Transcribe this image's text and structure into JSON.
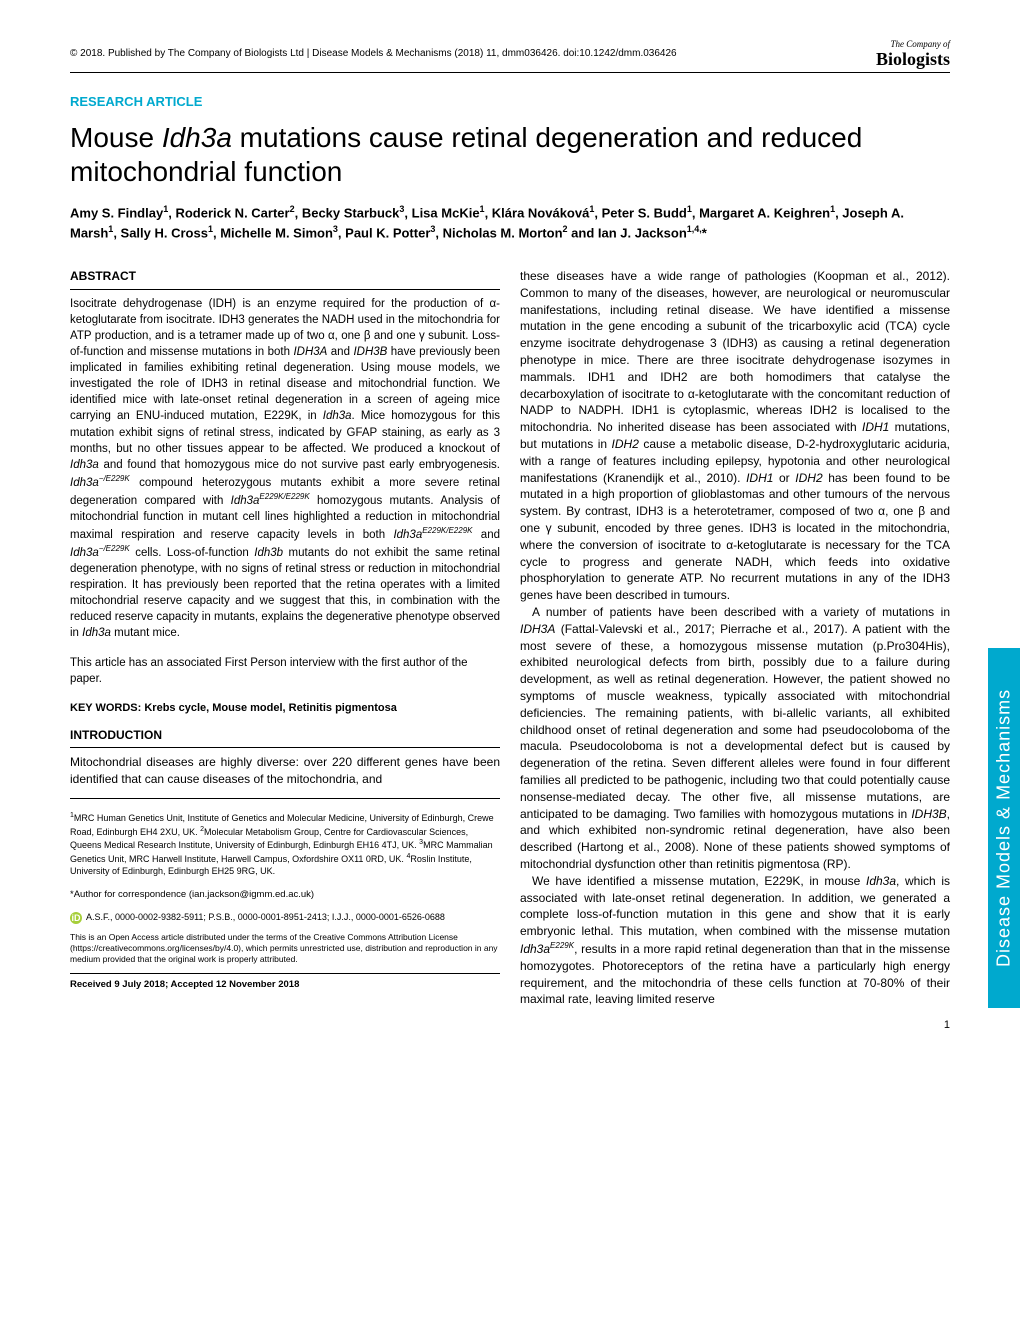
{
  "header": {
    "copyright": "© 2018. Published by The Company of Biologists Ltd | Disease Models & Mechanisms (2018) 11, dmm036426. doi:10.1242/dmm.036426",
    "logo_small": "The Company of",
    "logo_big": "Biologists"
  },
  "article_type": "RESEARCH ARTICLE",
  "title_pre": "Mouse ",
  "title_gene": "Idh3a",
  "title_post": " mutations cause retinal degeneration and reduced mitochondrial function",
  "authors_html": "Amy S. Findlay<sup>1</sup>, Roderick N. Carter<sup>2</sup>, Becky Starbuck<sup>3</sup>, Lisa McKie<sup>1</sup>, Klára Nováková<sup>1</sup>, Peter S. Budd<sup>1</sup>, Margaret A. Keighren<sup>1</sup>, Joseph A. Marsh<sup>1</sup>, Sally H. Cross<sup>1</sup>, Michelle M. Simon<sup>3</sup>, Paul K. Potter<sup>3</sup>, Nicholas M. Morton<sup>2</sup> and Ian J. Jackson<sup>1,4,</sup>*",
  "abstract_heading": "ABSTRACT",
  "abstract": "Isocitrate dehydrogenase (IDH) is an enzyme required for the production of α-ketoglutarate from isocitrate. IDH3 generates the NADH used in the mitochondria for ATP production, and is a tetramer made up of two α, one β and one γ subunit. Loss-of-function and missense mutations in both <i>IDH3A</i> and <i>IDH3B</i> have previously been implicated in families exhibiting retinal degeneration. Using mouse models, we investigated the role of IDH3 in retinal disease and mitochondrial function. We identified mice with late-onset retinal degeneration in a screen of ageing mice carrying an ENU-induced mutation, E229K, in <i>Idh3a</i>. Mice homozygous for this mutation exhibit signs of retinal stress, indicated by GFAP staining, as early as 3 months, but no other tissues appear to be affected. We produced a knockout of <i>Idh3a</i> and found that homozygous mice do not survive past early embryogenesis. <i>Idh3a<sup>−/E229K</sup></i> compound heterozygous mutants exhibit a more severe retinal degeneration compared with <i>Idh3a<sup>E229K/E229K</sup></i> homozygous mutants. Analysis of mitochondrial function in mutant cell lines highlighted a reduction in mitochondrial maximal respiration and reserve capacity levels in both <i>Idh3a<sup>E229K/E229K</sup></i> and <i>Idh3a<sup>−/E229K</sup></i> cells. Loss-of-function <i>Idh3b</i> mutants do not exhibit the same retinal degeneration phenotype, with no signs of retinal stress or reduction in mitochondrial respiration. It has previously been reported that the retina operates with a limited mitochondrial reserve capacity and we suggest that this, in combination with the reduced reserve capacity in mutants, explains the degenerative phenotype observed in <i>Idh3a</i> mutant mice.",
  "first_person": "This article has an associated First Person interview with the first author of the paper.",
  "keywords_label": "KEY WORDS: Krebs cycle, Mouse model, Retinitis pigmentosa",
  "intro_heading": "INTRODUCTION",
  "intro_p1": "Mitochondrial diseases are highly diverse: over 220 different genes have been identified that can cause diseases of the mitochondria, and",
  "intro_col2_p1": "these diseases have a wide range of pathologies (Koopman et al., 2012). Common to many of the diseases, however, are neurological or neuromuscular manifestations, including retinal disease. We have identified a missense mutation in the gene encoding a subunit of the tricarboxylic acid (TCA) cycle enzyme isocitrate dehydrogenase 3 (IDH3) as causing a retinal degeneration phenotype in mice. There are three isocitrate dehydrogenase isozymes in mammals. IDH1 and IDH2 are both homodimers that catalyse the decarboxylation of isocitrate to α-ketoglutarate with the concomitant reduction of NADP to NADPH. IDH1 is cytoplasmic, whereas IDH2 is localised to the mitochondria. No inherited disease has been associated with <i>IDH1</i> mutations, but mutations in <i>IDH2</i> cause a metabolic disease, D-2-hydroxyglutaric aciduria, with a range of features including epilepsy, hypotonia and other neurological manifestations (Kranendijk et al., 2010). <i>IDH1</i> or <i>IDH2</i> has been found to be mutated in a high proportion of glioblastomas and other tumours of the nervous system. By contrast, IDH3 is a heterotetramer, composed of two α, one β and one γ subunit, encoded by three genes. IDH3 is located in the mitochondria, where the conversion of isocitrate to α-ketoglutarate is necessary for the TCA cycle to progress and generate NADH, which feeds into oxidative phosphorylation to generate ATP. No recurrent mutations in any of the IDH3 genes have been described in tumours.",
  "intro_col2_p2": "A number of patients have been described with a variety of mutations in <i>IDH3A</i> (Fattal-Valevski et al., 2017; Pierrache et al., 2017). A patient with the most severe of these, a homozygous missense mutation (p.Pro304His), exhibited neurological defects from birth, possibly due to a failure during development, as well as retinal degeneration. However, the patient showed no symptoms of muscle weakness, typically associated with mitochondrial deficiencies. The remaining patients, with bi-allelic variants, all exhibited childhood onset of retinal degeneration and some had pseudocoloboma of the macula. Pseudocoloboma is not a developmental defect but is caused by degeneration of the retina. Seven different alleles were found in four different families all predicted to be pathogenic, including two that could potentially cause nonsense-mediated decay. The other five, all missense mutations, are anticipated to be damaging. Two families with homozygous mutations in <i>IDH3B</i>, and which exhibited non-syndromic retinal degeneration, have also been described (Hartong et al., 2008). None of these patients showed symptoms of mitochondrial dysfunction other than retinitis pigmentosa (RP).",
  "intro_col2_p3": "We have identified a missense mutation, E229K, in mouse <i>Idh3a</i>, which is associated with late-onset retinal degeneration. In addition, we generated a complete loss-of-function mutation in this gene and show that it is early embryonic lethal. This mutation, when combined with the missense mutation <i>Idh3a<sup>E229K</sup></i>, results in a more rapid retinal degeneration than that in the missense homozygotes. Photoreceptors of the retina have a particularly high energy requirement, and the mitochondria of these cells function at 70-80% of their maximal rate, leaving limited reserve",
  "affiliations": "<sup>1</sup>MRC Human Genetics Unit, Institute of Genetics and Molecular Medicine, University of Edinburgh, Crewe Road, Edinburgh EH4 2XU, UK. <sup>2</sup>Molecular Metabolism Group, Centre for Cardiovascular Sciences, Queens Medical Research Institute, University of Edinburgh, Edinburgh EH16 4TJ, UK. <sup>3</sup>MRC Mammalian Genetics Unit, MRC Harwell Institute, Harwell Campus, Oxfordshire OX11 0RD, UK. <sup>4</sup>Roslin Institute, University of Edinburgh, Edinburgh EH25 9RG, UK.",
  "correspondence": "*Author for correspondence (ian.jackson@igmm.ed.ac.uk)",
  "orcid": "A.S.F., 0000-0002-9382-5911; P.S.B., 0000-0001-8951-2413; I.J.J., 0000-0001-6526-0688",
  "license": "This is an Open Access article distributed under the terms of the Creative Commons Attribution License (https://creativecommons.org/licenses/by/4.0), which permits unrestricted use, distribution and reproduction in any medium provided that the original work is properly attributed.",
  "received": "Received 9 July 2018; Accepted 12 November 2018",
  "side_tab": "Disease Models & Mechanisms",
  "page_number": "1",
  "colors": {
    "accent": "#00a9ce",
    "orcid_green": "#a6ce39"
  }
}
